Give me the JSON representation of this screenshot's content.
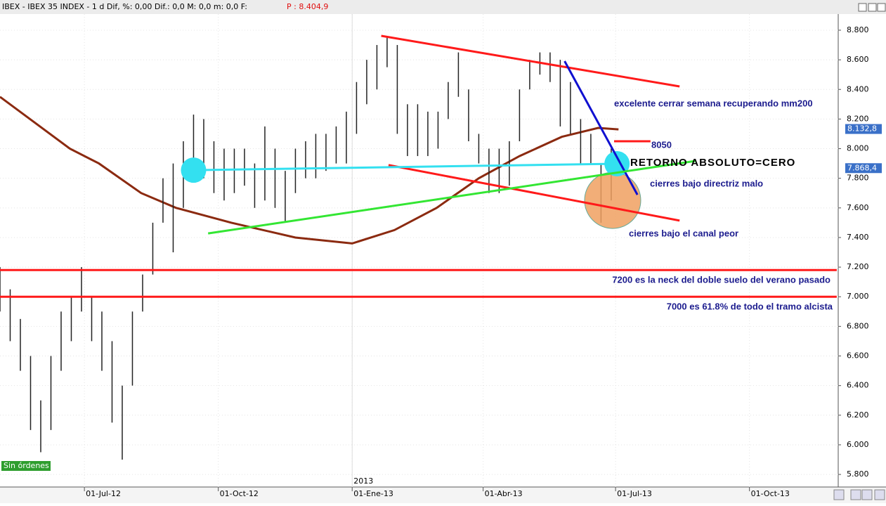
{
  "header": {
    "text": "IBEX - IBEX 35 INDEX - 1 d Dif, %: 0,00 Dif.: 0,0 M: 0,0 m: 0,0 F:",
    "price": "P : 8.404,9"
  },
  "status": "Sin órdenes",
  "chart_data": {
    "type": "ohlc",
    "color": "#222222",
    "x": [
      "2012-05-04",
      "2012-05-11",
      "2012-05-18",
      "2012-05-25",
      "2012-06-01",
      "2012-06-08",
      "2012-06-15",
      "2012-06-22",
      "2012-06-29",
      "2012-07-06",
      "2012-07-13",
      "2012-07-20",
      "2012-07-27",
      "2012-08-03",
      "2012-08-10",
      "2012-08-17",
      "2012-08-24",
      "2012-08-31",
      "2012-09-07",
      "2012-09-14",
      "2012-09-21",
      "2012-09-28",
      "2012-10-05",
      "2012-10-12",
      "2012-10-19",
      "2012-10-26",
      "2012-11-02",
      "2012-11-09",
      "2012-11-16",
      "2012-11-23",
      "2012-11-30",
      "2012-12-07",
      "2012-12-14",
      "2012-12-21",
      "2012-12-28",
      "2013-01-04",
      "2013-01-11",
      "2013-01-18",
      "2013-01-25",
      "2013-02-01",
      "2013-02-08",
      "2013-02-15",
      "2013-02-22",
      "2013-03-01",
      "2013-03-08",
      "2013-03-15",
      "2013-03-22",
      "2013-03-29",
      "2013-04-05",
      "2013-04-12",
      "2013-04-19",
      "2013-04-26",
      "2013-05-03",
      "2013-05-10",
      "2013-05-17",
      "2013-05-24",
      "2013-05-31",
      "2013-06-07",
      "2013-06-14",
      "2013-06-21",
      "2013-06-28"
    ],
    "low": [
      6900,
      6700,
      6500,
      6100,
      5950,
      6100,
      6500,
      6700,
      6900,
      6700,
      6500,
      6150,
      5900,
      6400,
      6900,
      7150,
      7500,
      7300,
      7600,
      7900,
      7800,
      7700,
      7650,
      7700,
      7750,
      7600,
      7650,
      7600,
      7500,
      7700,
      7800,
      7800,
      7850,
      7900,
      7900,
      8100,
      8300,
      8400,
      8550,
      8100,
      7950,
      7950,
      7950,
      8000,
      8200,
      8350,
      8050,
      7900,
      7700,
      7700,
      7750,
      8050,
      8400,
      8500,
      8450,
      8150,
      8100,
      7900,
      7900,
      7500,
      7650
    ],
    "high": [
      7200,
      7050,
      6850,
      6600,
      6300,
      6600,
      6900,
      7000,
      7200,
      7000,
      6900,
      6700,
      6400,
      6900,
      7150,
      7500,
      7800,
      7900,
      8050,
      8230,
      8200,
      8050,
      8000,
      8000,
      8000,
      7900,
      8150,
      8000,
      7850,
      8000,
      8050,
      8100,
      8100,
      8150,
      8250,
      8450,
      8600,
      8700,
      8750,
      8700,
      8300,
      8300,
      8250,
      8250,
      8450,
      8650,
      8400,
      8100,
      8000,
      8000,
      8050,
      8400,
      8600,
      8650,
      8650,
      8600,
      8450,
      8200,
      8100,
      7900,
      8000
    ],
    "ma": {
      "color": "#8b2a10",
      "x": [
        "2012-05-04",
        "2012-06-21",
        "2012-07-11",
        "2012-08-09",
        "2012-09-02",
        "2012-10-10",
        "2012-11-23",
        "2013-01-01",
        "2013-01-30",
        "2013-02-28",
        "2013-03-29",
        "2013-04-26",
        "2013-05-25",
        "2013-06-19",
        "2013-07-03"
      ],
      "values": [
        8350,
        8000,
        7900,
        7700,
        7600,
        7500,
        7400,
        7360,
        7450,
        7600,
        7800,
        7950,
        8080,
        8140,
        8130
      ]
    },
    "xlim": [
      "2012-05-04",
      "2013-12-01"
    ],
    "ylim": [
      5715,
      8909
    ],
    "xticks": [
      {
        "value": "2012-07-01",
        "label": "01-Jul-12"
      },
      {
        "value": "2012-10-01",
        "label": "01-Oct-12"
      },
      {
        "value": "2013-01-01",
        "label": "01-Ene-13"
      },
      {
        "value": "2013-04-01",
        "label": "01-Abr-13"
      },
      {
        "value": "2013-07-01",
        "label": "01-Jul-13"
      },
      {
        "value": "2013-10-01",
        "label": "01-Oct-13"
      }
    ],
    "year_label": {
      "value": "2013-01-01",
      "label": "2013"
    },
    "yticks": [
      {
        "value": 5800,
        "label": "5.800"
      },
      {
        "value": 6000,
        "label": "6.000"
      },
      {
        "value": 6200,
        "label": "6.200"
      },
      {
        "value": 6400,
        "label": "6.400"
      },
      {
        "value": 6600,
        "label": "6.600"
      },
      {
        "value": 6800,
        "label": "6.800"
      },
      {
        "value": 7000,
        "label": "7.000"
      },
      {
        "value": 7200,
        "label": "7.200"
      },
      {
        "value": 7400,
        "label": "7.400"
      },
      {
        "value": 7600,
        "label": "7.600"
      },
      {
        "value": 7800,
        "label": "7.800"
      },
      {
        "value": 8000,
        "label": "8.000"
      },
      {
        "value": 8200,
        "label": "8.200"
      },
      {
        "value": 8400,
        "label": "8.400"
      },
      {
        "value": 8600,
        "label": "8.600"
      },
      {
        "value": 8800,
        "label": "8.800"
      }
    ],
    "grid": true,
    "price_tags": [
      {
        "value": 8132.8,
        "label": "8.132,8"
      },
      {
        "value": 7868.4,
        "label": "7.868,4"
      }
    ],
    "lines": [
      {
        "color": "#ff1a1a",
        "x": [
          "2013-01-21",
          "2013-08-14"
        ],
        "values": [
          8762,
          8420
        ]
      },
      {
        "color": "#ff1a1a",
        "x": [
          "2013-01-26",
          "2013-08-14"
        ],
        "values": [
          7889,
          7514
        ]
      },
      {
        "color": "#1010d0",
        "x": [
          "2013-05-27",
          "2013-07-16"
        ],
        "values": [
          8591,
          7689
        ]
      },
      {
        "color": "#33e0f0",
        "x": [
          "2012-09-14",
          "2013-07-02"
        ],
        "values": [
          7855,
          7898
        ]
      },
      {
        "color": "#33e633",
        "x": [
          "2012-09-24",
          "2013-08-25"
        ],
        "values": [
          7428,
          7917
        ]
      },
      {
        "color": "#ff1a1a",
        "x": [
          "2013-06-30",
          "2013-07-25"
        ],
        "values": [
          8050,
          8050
        ]
      },
      {
        "color": "#ff1a1a",
        "x": [
          "2012-05-04",
          "2013-11-30"
        ],
        "values": [
          7180,
          7180
        ]
      },
      {
        "color": "#ff1a1a",
        "x": [
          "2012-05-04",
          "2013-11-30"
        ],
        "values": [
          7000,
          7000
        ]
      }
    ],
    "circles": [
      {
        "color": "#f0a060",
        "x": "2013-06-29",
        "value": 7651
      },
      {
        "color": "#33e0f0",
        "x": "2012-09-14",
        "value": 7855
      },
      {
        "color": "#33e0f0",
        "x": "2013-07-02",
        "value": 7898
      }
    ],
    "annotations": [
      "excelente cerrar semana recuperando mm200",
      "8050",
      "RETORNO ABSOLUTO=CERO",
      "cierres bajo directriz malo",
      "cierres bajo el canal peor",
      "7200 es la neck del doble suelo del verano pasado",
      "7000 es 61.8% de todo el tramo alcista"
    ]
  }
}
